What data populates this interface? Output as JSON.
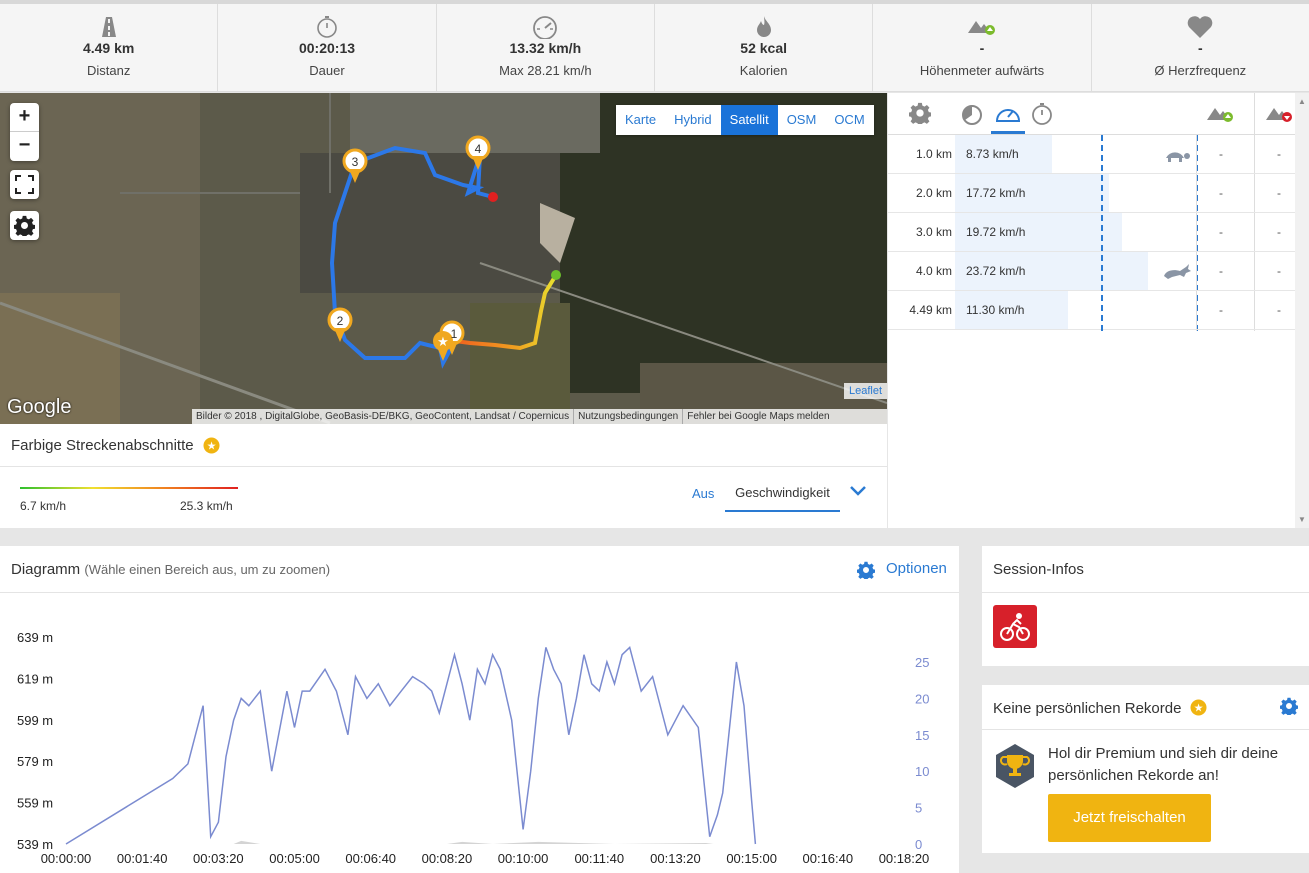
{
  "stats": [
    {
      "icon": "road-icon",
      "value": "4.49 km",
      "label": "Distanz"
    },
    {
      "icon": "stopwatch-icon",
      "value": "00:20:13",
      "label": "Dauer"
    },
    {
      "icon": "speedometer-icon",
      "value": "13.32 km/h",
      "label": "Max 28.21 km/h"
    },
    {
      "icon": "flame-icon",
      "value": "52 kcal",
      "label": "Kalorien"
    },
    {
      "icon": "elevation-up-icon",
      "value": "-",
      "label": "Höhenmeter aufwärts"
    },
    {
      "icon": "heart-icon",
      "value": "-",
      "label": "Ø Herzfrequenz"
    }
  ],
  "map": {
    "zoom_in": "+",
    "zoom_out": "−",
    "layers": [
      "Karte",
      "Hybrid",
      "Satellit",
      "OSM",
      "OCM"
    ],
    "active_layer": "Satellit",
    "leaflet": "Leaflet",
    "google": "Google",
    "attribution": [
      "Bilder © 2018 , DigitalGlobe, GeoBasis-DE/BKG, GeoContent, Landsat / Copernicus",
      "Nutzungsbedingungen",
      "Fehler bei Google Maps melden"
    ],
    "markers": [
      "1",
      "2",
      "3",
      "4"
    ]
  },
  "segments": {
    "title": "Farbige Streckenabschnitte",
    "min": "6.7 km/h",
    "max": "25.3 km/h",
    "off": "Aus",
    "selected": "Geschwindigkeit"
  },
  "splits": {
    "rows": [
      {
        "km": "1.0 km",
        "speed": "8.73 km/h",
        "fill": 0.368,
        "badge": "turtle-icon",
        "up": "-",
        "down": "-"
      },
      {
        "km": "2.0 km",
        "speed": "17.72 km/h",
        "fill": 0.747,
        "badge": "",
        "up": "-",
        "down": "-"
      },
      {
        "km": "3.0 km",
        "speed": "19.72 km/h",
        "fill": 0.831,
        "badge": "",
        "up": "-",
        "down": "-"
      },
      {
        "km": "4.0 km",
        "speed": "23.72 km/h",
        "fill": 1.0,
        "badge": "rabbit-icon",
        "up": "-",
        "down": "-"
      },
      {
        "km": "4.49 km",
        "speed": "11.30 km/h",
        "fill": 0.476,
        "badge": "",
        "up": "-",
        "down": "-"
      }
    ]
  },
  "diagram": {
    "title": "Diagramm",
    "hint": "(Wähle einen Bereich aus, um zu zoomen)",
    "options": "Optionen"
  },
  "chart_data": {
    "type": "line",
    "title": "",
    "x_ticks": [
      "00:00:00",
      "00:01:40",
      "00:03:20",
      "00:05:00",
      "00:06:40",
      "00:08:20",
      "00:10:00",
      "00:11:40",
      "00:13:20",
      "00:15:00",
      "00:16:40",
      "00:18:20"
    ],
    "y_left_ticks": [
      "539 m",
      "559 m",
      "579 m",
      "599 m",
      "619 m",
      "639 m"
    ],
    "y_right_ticks": [
      "0",
      "5",
      "10",
      "15",
      "20",
      "25"
    ],
    "xlim_seconds": [
      0,
      1100
    ],
    "y_right_lim": [
      0,
      25
    ],
    "series": [
      {
        "unit": "km/h",
        "color": "#7b8bd0",
        "x": [
          0,
          140,
          160,
          175,
          180,
          190,
          200,
          210,
          220,
          230,
          240,
          255,
          270,
          290,
          300,
          310,
          320,
          340,
          355,
          370,
          380,
          395,
          410,
          425,
          440,
          455,
          470,
          480,
          490,
          500,
          510,
          520,
          530,
          540,
          550,
          560,
          570,
          585,
          600,
          610,
          620,
          630,
          640,
          650,
          660,
          670,
          680,
          690,
          700,
          710,
          720,
          730,
          740,
          755,
          770,
          790,
          810,
          830,
          845,
          855,
          862,
          870,
          880,
          890,
          900,
          905
        ],
        "y": [
          0,
          9,
          11,
          17,
          19,
          1,
          3,
          12,
          17,
          20,
          19,
          21,
          10,
          21,
          16,
          21,
          21,
          24,
          21,
          15,
          23,
          20,
          22,
          19,
          21,
          23,
          22,
          21,
          18,
          22,
          26,
          22,
          17,
          24,
          22,
          26,
          24,
          17,
          2,
          10,
          20,
          27,
          24,
          22,
          15,
          20,
          26,
          22,
          21,
          25,
          22,
          26,
          27,
          21,
          23,
          15,
          19,
          16,
          1,
          4,
          7,
          15,
          25,
          19,
          6,
          0
        ]
      },
      {
        "unit": "m",
        "color": "#d4d4d4",
        "x": [
          0,
          220,
          230,
          255,
          500,
          520,
          560,
          620,
          720,
          840,
          850,
          900
        ],
        "y": [
          539,
          539,
          540.5,
          539,
          539,
          540,
          539,
          540,
          539,
          539.5,
          539,
          539
        ]
      }
    ]
  },
  "session": {
    "title": "Session-Infos",
    "icon": "cycling-icon"
  },
  "rekorde": {
    "title": "Keine persönlichen Rekorde",
    "promo": "Hol dir Premium und sieh dir deine persönlichen Rekorde an!",
    "button": "Jetzt freischalten"
  },
  "colors": {
    "accent": "#2a7ad2",
    "route": "#2c78e8",
    "premium": "#f0b411",
    "session_badge": "#d7202a"
  }
}
